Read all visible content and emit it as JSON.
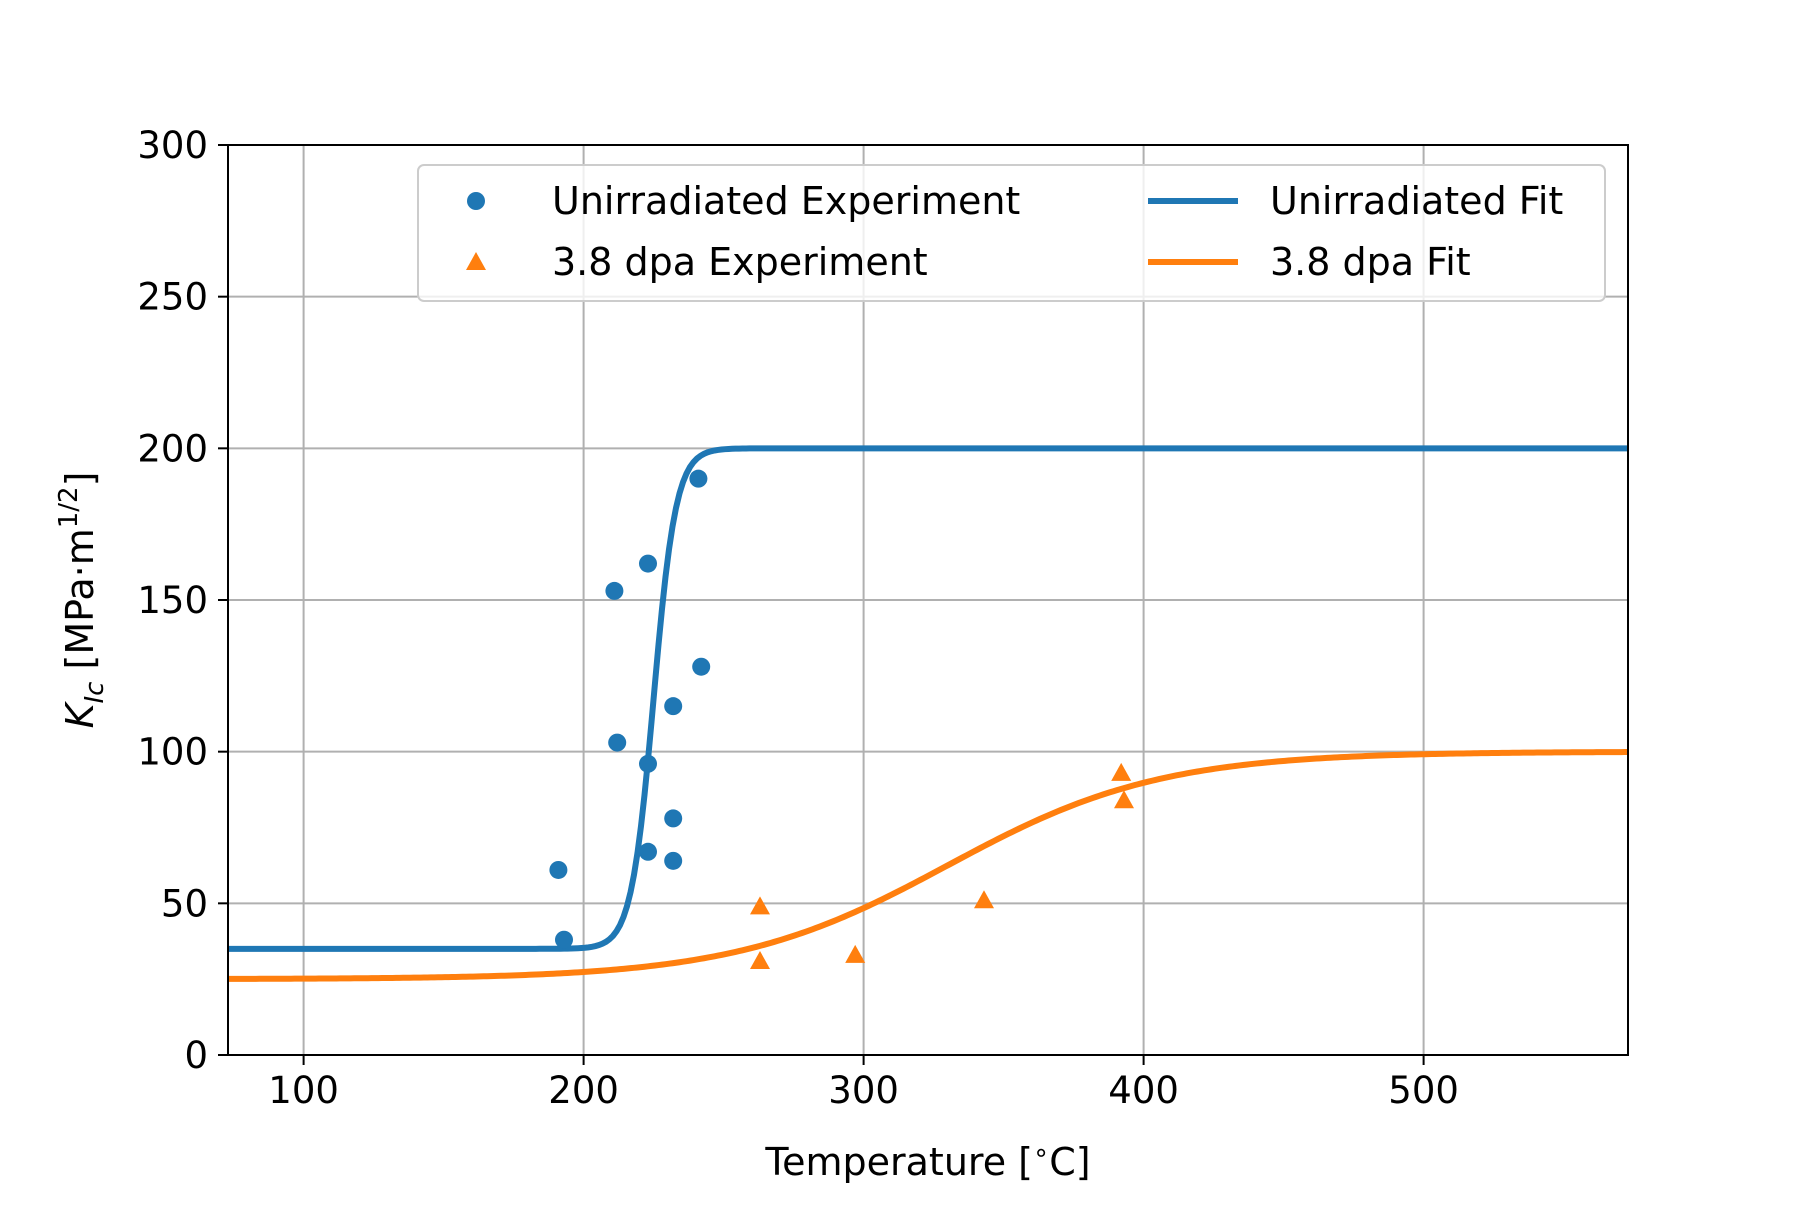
{
  "chart_data": {
    "type": "scatter",
    "xlabel": {
      "main": "Temperature [",
      "degree": "∘",
      "unit": "C]"
    },
    "ylabel": {
      "symbol": "K",
      "subscript": "Ic",
      "unit": " [MPa·m",
      "sup": "1/2",
      "end": "]"
    },
    "xlim": [
      73,
      573
    ],
    "ylim": [
      0,
      300
    ],
    "xticks": [
      100,
      200,
      300,
      400,
      500
    ],
    "yticks": [
      0,
      50,
      100,
      150,
      200,
      250,
      300
    ],
    "grid": true,
    "legend_placement": "upper-center",
    "series": [
      {
        "name": "Unirradiated Experiment",
        "kind": "scatter",
        "marker": "circle",
        "color": "#1f77b4",
        "points": [
          [
            191,
            61
          ],
          [
            193,
            38
          ],
          [
            211,
            153
          ],
          [
            212,
            103
          ],
          [
            223,
            162
          ],
          [
            223,
            96
          ],
          [
            223,
            67
          ],
          [
            232,
            115
          ],
          [
            232,
            78
          ],
          [
            232,
            64
          ],
          [
            241,
            190
          ],
          [
            242,
            128
          ]
        ]
      },
      {
        "name": "3.8 dpa Experiment",
        "kind": "scatter",
        "marker": "triangle",
        "color": "#ff7f0e",
        "points": [
          [
            263,
            49
          ],
          [
            263,
            31
          ],
          [
            297,
            33
          ],
          [
            343,
            51
          ],
          [
            392,
            93
          ],
          [
            393,
            84
          ]
        ]
      },
      {
        "name": "Unirradiated Fit",
        "kind": "line",
        "color": "#1f77b4",
        "model": {
          "lower": 35,
          "upper": 200,
          "t0": 225,
          "scale": 4
        }
      },
      {
        "name": "3.8 dpa Fit",
        "kind": "line",
        "color": "#ff7f0e",
        "model": {
          "lower": 25,
          "upper": 100,
          "t0": 330,
          "scale": 38
        }
      }
    ]
  }
}
